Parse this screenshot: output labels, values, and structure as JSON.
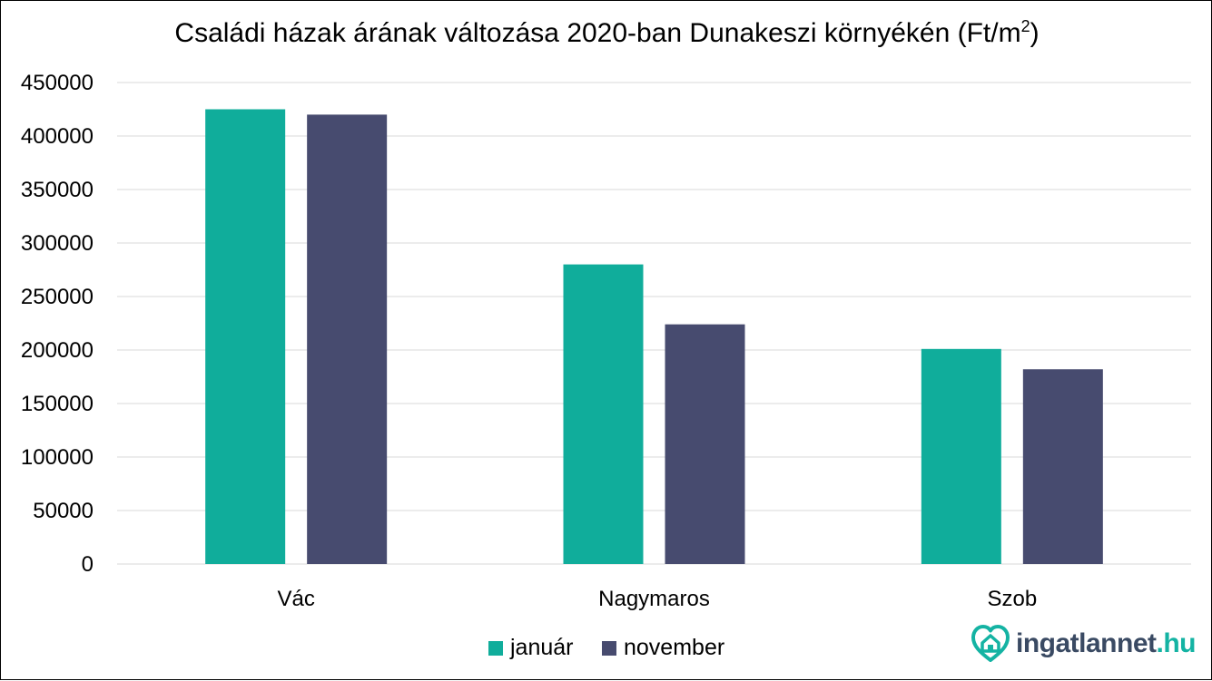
{
  "chart_data": {
    "type": "bar",
    "title_main": "Családi házak árának változása 2020-ban Dunakeszi környékén (Ft/m",
    "title_sup": "2",
    "title_end": ")",
    "categories": [
      "Vác",
      "Nagymaros",
      "Szob"
    ],
    "series": [
      {
        "name": "január",
        "color": "#10ad9b",
        "values": [
          425000,
          280000,
          201000
        ]
      },
      {
        "name": "november",
        "color": "#474b6f",
        "values": [
          420000,
          224000,
          182000
        ]
      }
    ],
    "yticks": [
      "0",
      "50000",
      "100000",
      "150000",
      "200000",
      "250000",
      "300000",
      "350000",
      "400000",
      "450000"
    ],
    "ylim": [
      0,
      450000
    ],
    "grid": true,
    "legend_position": "bottom"
  },
  "logo": {
    "name": "ingatlannet",
    "suffix": ".hu",
    "icon": "house-heart-icon"
  }
}
